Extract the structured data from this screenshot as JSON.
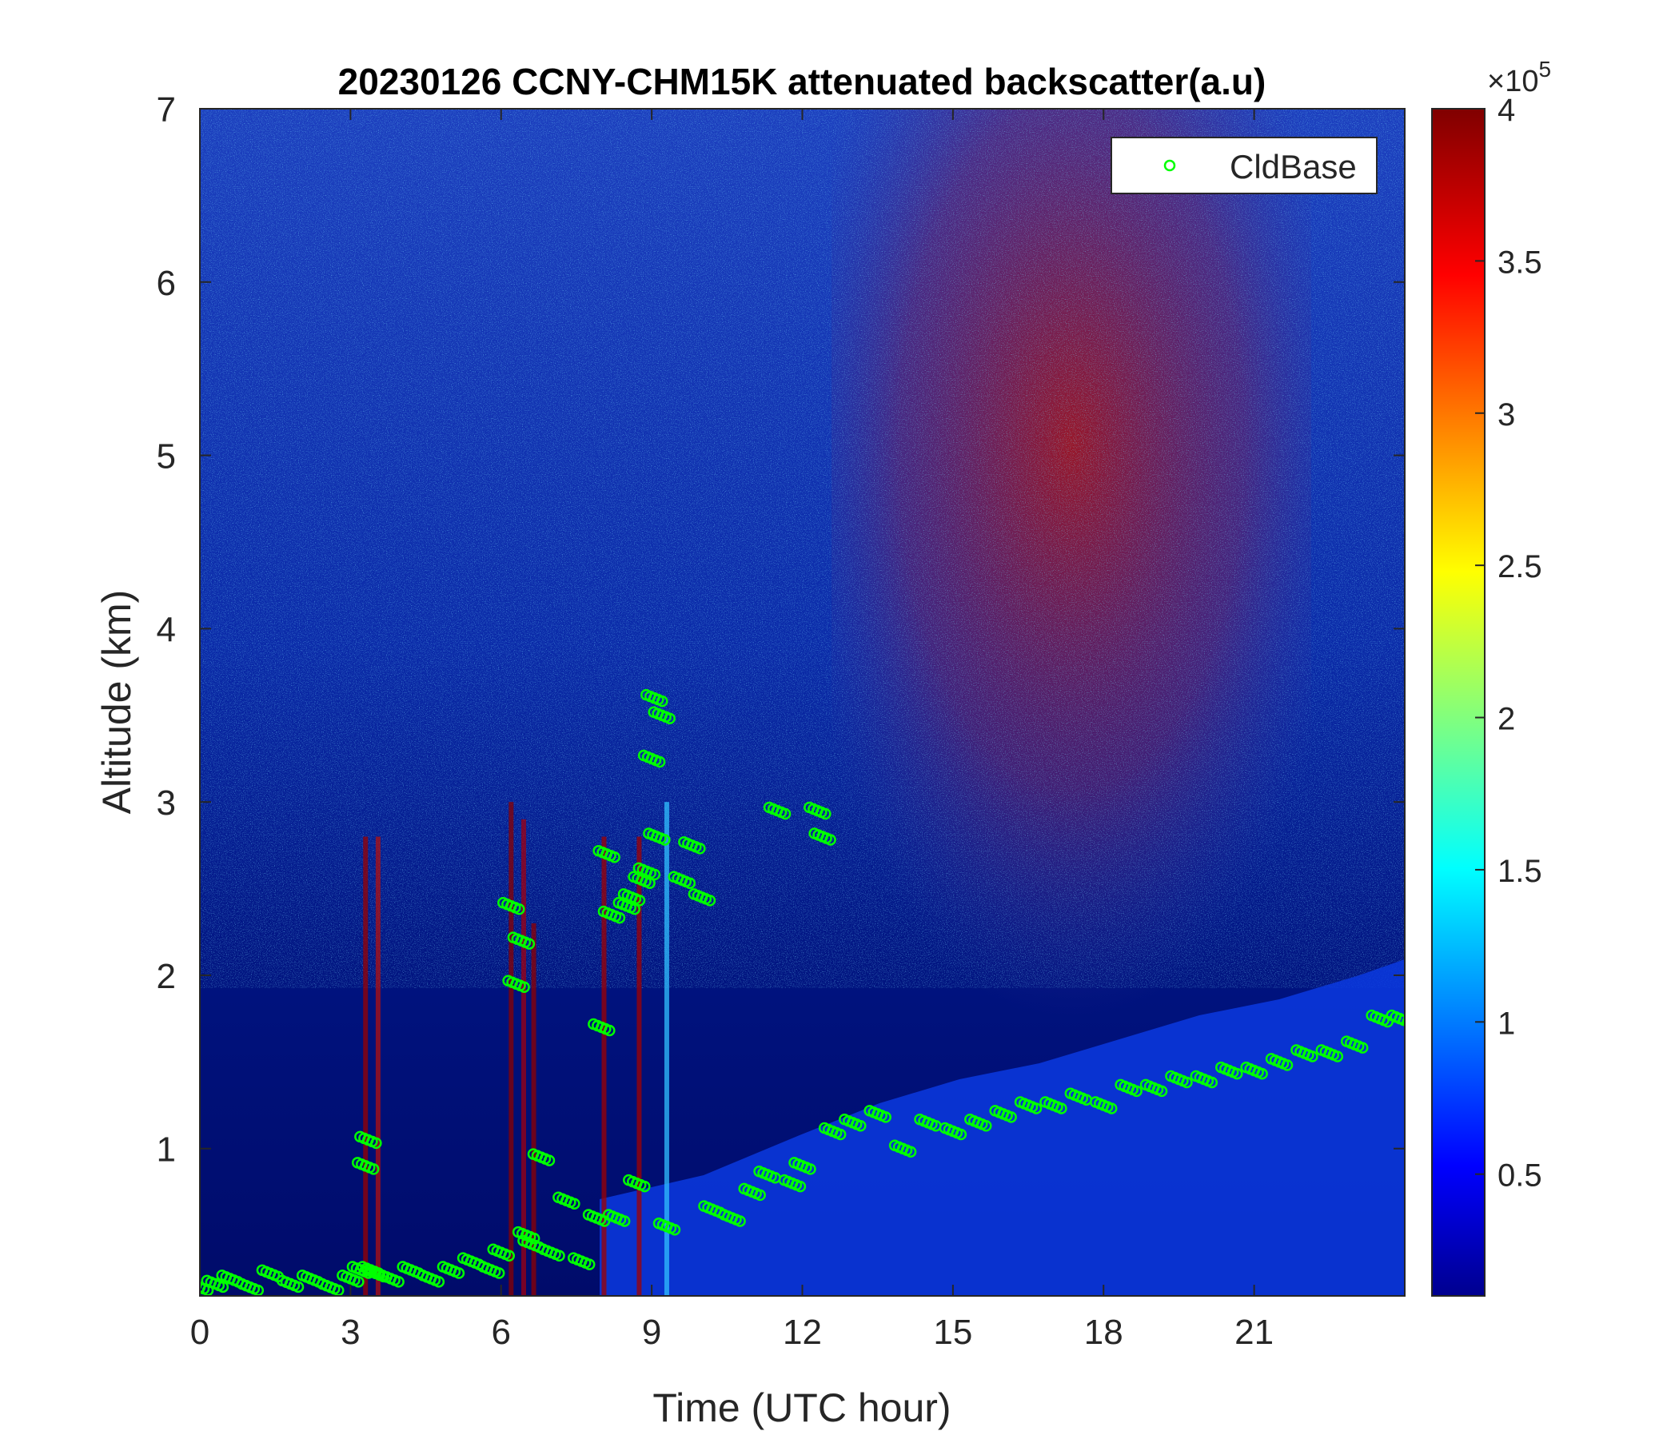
{
  "chart_data": {
    "type": "heatmap",
    "title": "20230126 CCNY-CHM15K attenuated backscatter(a.u)",
    "xlabel": "Time (UTC hour)",
    "ylabel": "Altitude (km)",
    "xlim": [
      0,
      24
    ],
    "ylim": [
      0.15,
      7
    ],
    "x_ticks": [
      0,
      3,
      6,
      9,
      12,
      15,
      18,
      21
    ],
    "y_ticks": [
      1,
      2,
      3,
      4,
      5,
      6,
      7
    ],
    "colorbar": {
      "colormap": "jet",
      "multiplier_label": "×10",
      "exponent": "5",
      "clim": [
        0.1,
        4
      ],
      "ticks": [
        0.5,
        1,
        1.5,
        2,
        2.5,
        3,
        3.5,
        4
      ],
      "tick_labels": [
        "0.5",
        "1",
        "1.5",
        "2",
        "2.5",
        "3",
        "3.5",
        "4"
      ]
    },
    "legend": {
      "location": "top-right",
      "entries": [
        {
          "name": "CldBase",
          "marker": "circle",
          "color": "#00ff00"
        }
      ]
    },
    "series": [
      {
        "name": "CldBase",
        "type": "scatter",
        "x": [
          0.0,
          0.3,
          0.6,
          1.0,
          1.4,
          1.8,
          2.2,
          2.6,
          3.0,
          3.2,
          3.3,
          3.35,
          3.4,
          3.5,
          3.8,
          4.2,
          4.6,
          5.0,
          5.4,
          5.8,
          6.0,
          6.2,
          6.3,
          6.4,
          6.5,
          6.6,
          6.8,
          7.0,
          7.3,
          7.6,
          7.9,
          8.0,
          8.1,
          8.2,
          8.3,
          8.5,
          8.6,
          8.7,
          8.8,
          8.9,
          9.0,
          9.05,
          9.1,
          9.2,
          9.3,
          9.6,
          9.8,
          10.0,
          10.2,
          10.6,
          11.0,
          11.3,
          11.5,
          11.8,
          12.0,
          12.3,
          12.4,
          12.6,
          13.0,
          13.5,
          14.0,
          14.5,
          15.0,
          15.5,
          16.0,
          16.5,
          17.0,
          17.5,
          18.0,
          18.5,
          19.0,
          19.5,
          20.0,
          20.5,
          21.0,
          21.5,
          22.0,
          22.5,
          23.0,
          23.5,
          23.9
        ],
        "y": [
          0.2,
          0.22,
          0.25,
          0.2,
          0.28,
          0.22,
          0.25,
          0.2,
          0.25,
          0.3,
          0.9,
          1.05,
          0.3,
          0.28,
          0.25,
          0.3,
          0.25,
          0.3,
          0.35,
          0.3,
          0.4,
          2.4,
          1.95,
          2.2,
          0.5,
          0.45,
          0.95,
          0.4,
          0.7,
          0.35,
          0.6,
          1.7,
          2.7,
          2.35,
          0.6,
          2.4,
          2.45,
          0.8,
          2.55,
          2.6,
          3.25,
          3.6,
          2.8,
          3.5,
          0.55,
          2.55,
          2.75,
          2.45,
          0.65,
          0.6,
          0.75,
          0.85,
          2.95,
          0.8,
          0.9,
          2.95,
          2.8,
          1.1,
          1.15,
          1.2,
          1.0,
          1.15,
          1.1,
          1.15,
          1.2,
          1.25,
          1.25,
          1.3,
          1.25,
          1.35,
          1.35,
          1.4,
          1.4,
          1.45,
          1.45,
          1.5,
          1.55,
          1.55,
          1.6,
          1.75,
          1.75
        ]
      }
    ]
  }
}
